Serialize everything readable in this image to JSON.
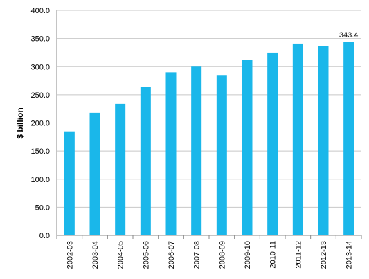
{
  "chart_data": {
    "type": "bar",
    "title": "",
    "xlabel": "",
    "ylabel": "$ billion",
    "ylim": [
      0,
      400
    ],
    "ytick_step": 50,
    "ytick_format_decimals": 1,
    "grid": true,
    "legend": "none",
    "bar_color": "#1ab7ea",
    "categories": [
      "2002-03",
      "2003-04",
      "2004-05",
      "2005-06",
      "2006-07",
      "2007-08",
      "2008-09",
      "2009-10",
      "2010-11",
      "2011-12",
      "2012-13",
      "2013-14"
    ],
    "values": [
      185,
      218,
      234,
      264,
      290,
      300,
      284,
      312,
      325,
      341,
      336,
      343.4
    ],
    "data_labels": [
      {
        "index": 11,
        "text": "343.4"
      }
    ]
  }
}
